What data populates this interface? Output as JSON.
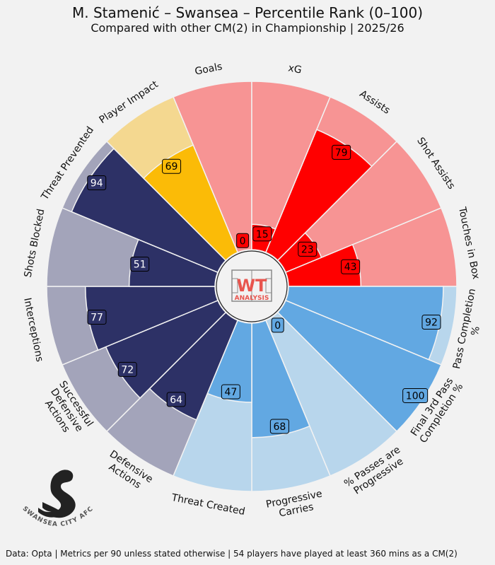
{
  "title": "M. Stamenić – Swansea – Percentile Rank (0–100)",
  "subtitle": "Compared with other CM(2) in Championship | 2025/26",
  "footer": "Data: Opta | Metrics per 90 unless stated otherwise | 54 players have played at least 360 mins as a CM(2)",
  "center_logo": {
    "top": "WT",
    "bottom": "ANALYSIS"
  },
  "club_logo_text": "SWANSEA CITY AFC",
  "colors": {
    "attack_full": "#ff0000",
    "attack_bg": "#f79494",
    "possession_full": "#62a8e2",
    "possession_bg": "#b8d6ec",
    "defense_full": "#2d3166",
    "defense_bg": "#a3a4ba",
    "impact_full": "#fbbb07",
    "impact_bg": "#f4d890"
  },
  "chart_data": {
    "type": "polar-bar",
    "title": "M. Stamenić – Swansea – Percentile Rank (0–100)",
    "rlim": [
      0,
      100
    ],
    "categories": [
      {
        "label": "Goals",
        "value": 0,
        "group": "attack"
      },
      {
        "label": "xG",
        "value": 15,
        "group": "attack"
      },
      {
        "label": "Assists",
        "value": 79,
        "group": "attack"
      },
      {
        "label": "Shot Assists",
        "value": 23,
        "group": "attack"
      },
      {
        "label": "Touches in Box",
        "value": 43,
        "group": "attack"
      },
      {
        "label": "Pass Completion %",
        "value": 92,
        "group": "possession"
      },
      {
        "label": "Final 3rd Pass Completion %",
        "value": 100,
        "group": "possession"
      },
      {
        "label": "% Passes are Progressive",
        "value": 0,
        "group": "possession"
      },
      {
        "label": "Progressive Carries",
        "value": 68,
        "group": "possession"
      },
      {
        "label": "Threat Created",
        "value": 47,
        "group": "possession"
      },
      {
        "label": "Defensive Actions",
        "value": 64,
        "group": "defense"
      },
      {
        "label": "Successful Defensive Actions",
        "value": 72,
        "group": "defense"
      },
      {
        "label": "Interceptions",
        "value": 77,
        "group": "defense"
      },
      {
        "label": "Shots Blocked",
        "value": 51,
        "group": "defense"
      },
      {
        "label": "Threat Prevented",
        "value": 94,
        "group": "defense"
      },
      {
        "label": "Player Impact",
        "value": 69,
        "group": "impact"
      }
    ]
  }
}
